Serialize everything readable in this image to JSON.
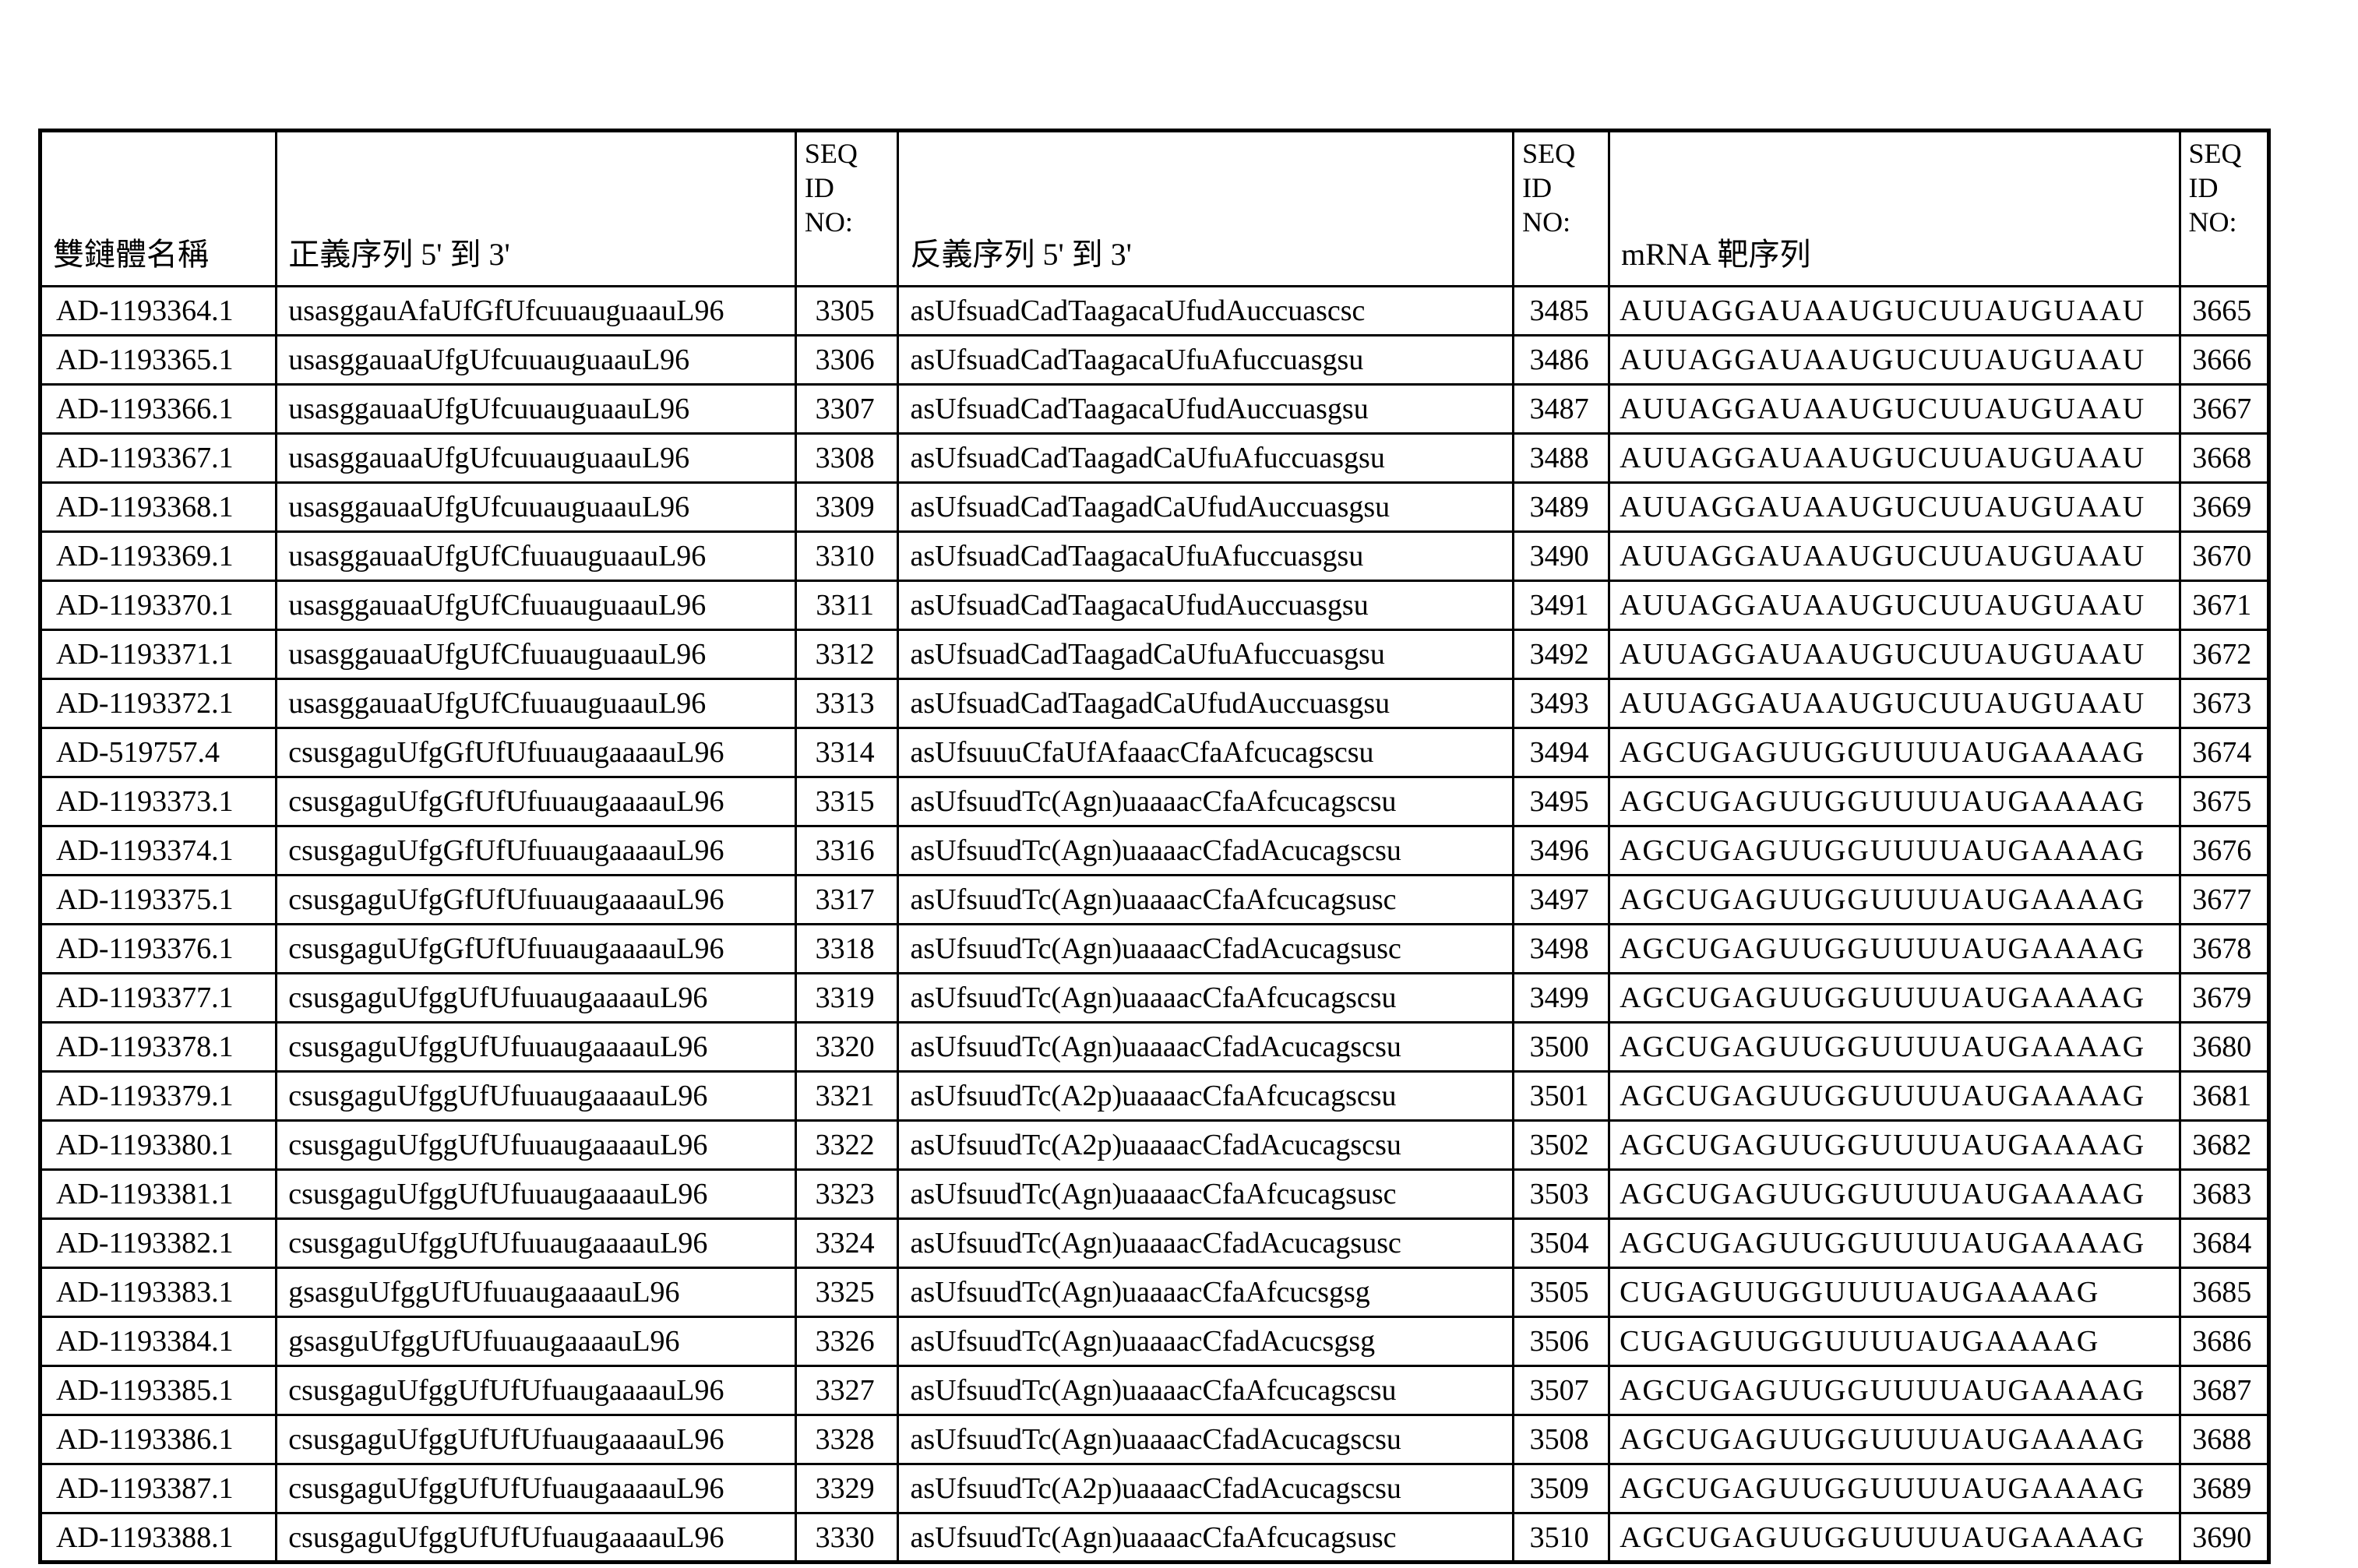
{
  "table": {
    "columns": [
      {
        "label": "雙鏈體名稱"
      },
      {
        "label": "正義序列 5' 到 3'"
      },
      {
        "label": "SEQ ID NO:"
      },
      {
        "label": "反義序列 5' 到 3'"
      },
      {
        "label": "SEQ ID NO:"
      },
      {
        "label": "mRNA 靶序列"
      },
      {
        "label": "SEQ ID NO:"
      }
    ],
    "rows": [
      {
        "name": "AD-1193364.1",
        "sense": "usasggauAfaUfGfUfcuuauguaauL96",
        "seq_id_1": "3305",
        "antisense": "asUfsuadCadTaagacaUfudAuccuascsc",
        "seq_id_2": "3485",
        "mrna": "AUUAGGAUAAUGUCUUAUGUAAU",
        "seq_id_3": "3665"
      },
      {
        "name": "AD-1193365.1",
        "sense": "usasggauaaUfgUfcuuauguaauL96",
        "seq_id_1": "3306",
        "antisense": "asUfsuadCadTaagacaUfuAfuccuasgsu",
        "seq_id_2": "3486",
        "mrna": "AUUAGGAUAAUGUCUUAUGUAAU",
        "seq_id_3": "3666"
      },
      {
        "name": "AD-1193366.1",
        "sense": "usasggauaaUfgUfcuuauguaauL96",
        "seq_id_1": "3307",
        "antisense": "asUfsuadCadTaagacaUfudAuccuasgsu",
        "seq_id_2": "3487",
        "mrna": "AUUAGGAUAAUGUCUUAUGUAAU",
        "seq_id_3": "3667"
      },
      {
        "name": "AD-1193367.1",
        "sense": "usasggauaaUfgUfcuuauguaauL96",
        "seq_id_1": "3308",
        "antisense": "asUfsuadCadTaagadCaUfuAfuccuasgsu",
        "seq_id_2": "3488",
        "mrna": "AUUAGGAUAAUGUCUUAUGUAAU",
        "seq_id_3": "3668"
      },
      {
        "name": "AD-1193368.1",
        "sense": "usasggauaaUfgUfcuuauguaauL96",
        "seq_id_1": "3309",
        "antisense": "asUfsuadCadTaagadCaUfudAuccuasgsu",
        "seq_id_2": "3489",
        "mrna": "AUUAGGAUAAUGUCUUAUGUAAU",
        "seq_id_3": "3669"
      },
      {
        "name": "AD-1193369.1",
        "sense": "usasggauaaUfgUfCfuuauguaauL96",
        "seq_id_1": "3310",
        "antisense": "asUfsuadCadTaagacaUfuAfuccuasgsu",
        "seq_id_2": "3490",
        "mrna": "AUUAGGAUAAUGUCUUAUGUAAU",
        "seq_id_3": "3670"
      },
      {
        "name": "AD-1193370.1",
        "sense": "usasggauaaUfgUfCfuuauguaauL96",
        "seq_id_1": "3311",
        "antisense": "asUfsuadCadTaagacaUfudAuccuasgsu",
        "seq_id_2": "3491",
        "mrna": "AUUAGGAUAAUGUCUUAUGUAAU",
        "seq_id_3": "3671"
      },
      {
        "name": "AD-1193371.1",
        "sense": "usasggauaaUfgUfCfuuauguaauL96",
        "seq_id_1": "3312",
        "antisense": "asUfsuadCadTaagadCaUfuAfuccuasgsu",
        "seq_id_2": "3492",
        "mrna": "AUUAGGAUAAUGUCUUAUGUAAU",
        "seq_id_3": "3672"
      },
      {
        "name": "AD-1193372.1",
        "sense": "usasggauaaUfgUfCfuuauguaauL96",
        "seq_id_1": "3313",
        "antisense": "asUfsuadCadTaagadCaUfudAuccuasgsu",
        "seq_id_2": "3493",
        "mrna": "AUUAGGAUAAUGUCUUAUGUAAU",
        "seq_id_3": "3673"
      },
      {
        "name": "AD-519757.4",
        "sense": "csusgaguUfgGfUfUfuuaugaaaauL96",
        "seq_id_1": "3314",
        "antisense": "asUfsuuuCfaUfAfaaacCfaAfcucagscsu",
        "seq_id_2": "3494",
        "mrna": "AGCUGAGUUGGUUUUAUGAAAAG",
        "seq_id_3": "3674"
      },
      {
        "name": "AD-1193373.1",
        "sense": "csusgaguUfgGfUfUfuuaugaaaauL96",
        "seq_id_1": "3315",
        "antisense": "asUfsuudTc(Agn)uaaaacCfaAfcucagscsu",
        "seq_id_2": "3495",
        "mrna": "AGCUGAGUUGGUUUUAUGAAAAG",
        "seq_id_3": "3675"
      },
      {
        "name": "AD-1193374.1",
        "sense": "csusgaguUfgGfUfUfuuaugaaaauL96",
        "seq_id_1": "3316",
        "antisense": "asUfsuudTc(Agn)uaaaacCfadAcucagscsu",
        "seq_id_2": "3496",
        "mrna": "AGCUGAGUUGGUUUUAUGAAAAG",
        "seq_id_3": "3676"
      },
      {
        "name": "AD-1193375.1",
        "sense": "csusgaguUfgGfUfUfuuaugaaaauL96",
        "seq_id_1": "3317",
        "antisense": "asUfsuudTc(Agn)uaaaacCfaAfcucagsusc",
        "seq_id_2": "3497",
        "mrna": "AGCUGAGUUGGUUUUAUGAAAAG",
        "seq_id_3": "3677"
      },
      {
        "name": "AD-1193376.1",
        "sense": "csusgaguUfgGfUfUfuuaugaaaauL96",
        "seq_id_1": "3318",
        "antisense": "asUfsuudTc(Agn)uaaaacCfadAcucagsusc",
        "seq_id_2": "3498",
        "mrna": "AGCUGAGUUGGUUUUAUGAAAAG",
        "seq_id_3": "3678"
      },
      {
        "name": "AD-1193377.1",
        "sense": "csusgaguUfggUfUfuuaugaaaauL96",
        "seq_id_1": "3319",
        "antisense": "asUfsuudTc(Agn)uaaaacCfaAfcucagscsu",
        "seq_id_2": "3499",
        "mrna": "AGCUGAGUUGGUUUUAUGAAAAG",
        "seq_id_3": "3679"
      },
      {
        "name": "AD-1193378.1",
        "sense": "csusgaguUfggUfUfuuaugaaaauL96",
        "seq_id_1": "3320",
        "antisense": "asUfsuudTc(Agn)uaaaacCfadAcucagscsu",
        "seq_id_2": "3500",
        "mrna": "AGCUGAGUUGGUUUUAUGAAAAG",
        "seq_id_3": "3680"
      },
      {
        "name": "AD-1193379.1",
        "sense": "csusgaguUfggUfUfuuaugaaaauL96",
        "seq_id_1": "3321",
        "antisense": "asUfsuudTc(A2p)uaaaacCfaAfcucagscsu",
        "seq_id_2": "3501",
        "mrna": "AGCUGAGUUGGUUUUAUGAAAAG",
        "seq_id_3": "3681"
      },
      {
        "name": "AD-1193380.1",
        "sense": "csusgaguUfggUfUfuuaugaaaauL96",
        "seq_id_1": "3322",
        "antisense": "asUfsuudTc(A2p)uaaaacCfadAcucagscsu",
        "seq_id_2": "3502",
        "mrna": "AGCUGAGUUGGUUUUAUGAAAAG",
        "seq_id_3": "3682"
      },
      {
        "name": "AD-1193381.1",
        "sense": "csusgaguUfggUfUfuuaugaaaauL96",
        "seq_id_1": "3323",
        "antisense": "asUfsuudTc(Agn)uaaaacCfaAfcucagsusc",
        "seq_id_2": "3503",
        "mrna": "AGCUGAGUUGGUUUUAUGAAAAG",
        "seq_id_3": "3683"
      },
      {
        "name": "AD-1193382.1",
        "sense": "csusgaguUfggUfUfuuaugaaaauL96",
        "seq_id_1": "3324",
        "antisense": "asUfsuudTc(Agn)uaaaacCfadAcucagsusc",
        "seq_id_2": "3504",
        "mrna": "AGCUGAGUUGGUUUUAUGAAAAG",
        "seq_id_3": "3684"
      },
      {
        "name": "AD-1193383.1",
        "sense": "gsasguUfggUfUfuuaugaaaauL96",
        "seq_id_1": "3325",
        "antisense": "asUfsuudTc(Agn)uaaaacCfaAfcucsgsg",
        "seq_id_2": "3505",
        "mrna": "CUGAGUUGGUUUUAUGAAAAG",
        "seq_id_3": "3685"
      },
      {
        "name": "AD-1193384.1",
        "sense": "gsasguUfggUfUfuuaugaaaauL96",
        "seq_id_1": "3326",
        "antisense": "asUfsuudTc(Agn)uaaaacCfadAcucsgsg",
        "seq_id_2": "3506",
        "mrna": "CUGAGUUGGUUUUAUGAAAAG",
        "seq_id_3": "3686"
      },
      {
        "name": "AD-1193385.1",
        "sense": "csusgaguUfggUfUfUfuaugaaaauL96",
        "seq_id_1": "3327",
        "antisense": "asUfsuudTc(Agn)uaaaacCfaAfcucagscsu",
        "seq_id_2": "3507",
        "mrna": "AGCUGAGUUGGUUUUAUGAAAAG",
        "seq_id_3": "3687"
      },
      {
        "name": "AD-1193386.1",
        "sense": "csusgaguUfggUfUfUfuaugaaaauL96",
        "seq_id_1": "3328",
        "antisense": "asUfsuudTc(Agn)uaaaacCfadAcucagscsu",
        "seq_id_2": "3508",
        "mrna": "AGCUGAGUUGGUUUUAUGAAAAG",
        "seq_id_3": "3688"
      },
      {
        "name": "AD-1193387.1",
        "sense": "csusgaguUfggUfUfUfuaugaaaauL96",
        "seq_id_1": "3329",
        "antisense": "asUfsuudTc(A2p)uaaaacCfadAcucagscsu",
        "seq_id_2": "3509",
        "mrna": "AGCUGAGUUGGUUUUAUGAAAAG",
        "seq_id_3": "3689"
      },
      {
        "name": "AD-1193388.1",
        "sense": "csusgaguUfggUfUfUfuaugaaaauL96",
        "seq_id_1": "3330",
        "antisense": "asUfsuudTc(Agn)uaaaacCfaAfcucagsusc",
        "seq_id_2": "3510",
        "mrna": "AGCUGAGUUGGUUUUAUGAAAAG",
        "seq_id_3": "3690"
      }
    ]
  }
}
